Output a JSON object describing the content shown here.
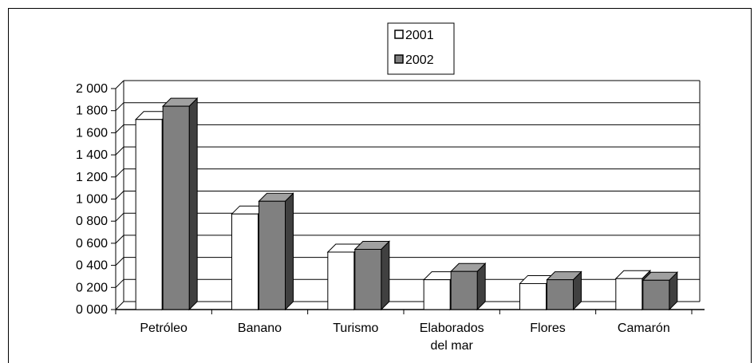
{
  "chart_data": {
    "type": "bar",
    "categories": [
      "Petróleo",
      "Banano",
      "Turismo",
      "Elaborados del mar",
      "Flores",
      "Camarón"
    ],
    "category_label_lines": [
      [
        "Petróleo"
      ],
      [
        "Banano"
      ],
      [
        "Turismo"
      ],
      [
        "Elaborados",
        "del mar"
      ],
      [
        "Flores"
      ],
      [
        "Camarón"
      ]
    ],
    "series": [
      {
        "name": "2001",
        "values": [
          1720,
          865,
          520,
          270,
          235,
          280
        ],
        "color": "#ffffff"
      },
      {
        "name": "2002",
        "values": [
          1840,
          980,
          545,
          345,
          270,
          265
        ],
        "color": "#808080"
      }
    ],
    "ylim": [
      0,
      2000
    ],
    "yticks": [
      0,
      200,
      400,
      600,
      800,
      1000,
      1200,
      1400,
      1600,
      1800,
      2000
    ],
    "ytick_labels": [
      "0 000",
      "0 200",
      "0 400",
      "0 600",
      "0 800",
      "1 000",
      "1 200",
      "1 400",
      "1 600",
      "1 800",
      "2 000"
    ],
    "grid": true,
    "legend_position": "top-center",
    "bar_style": "3d",
    "side_color": "#404040",
    "title": "",
    "xlabel": "",
    "ylabel": ""
  }
}
